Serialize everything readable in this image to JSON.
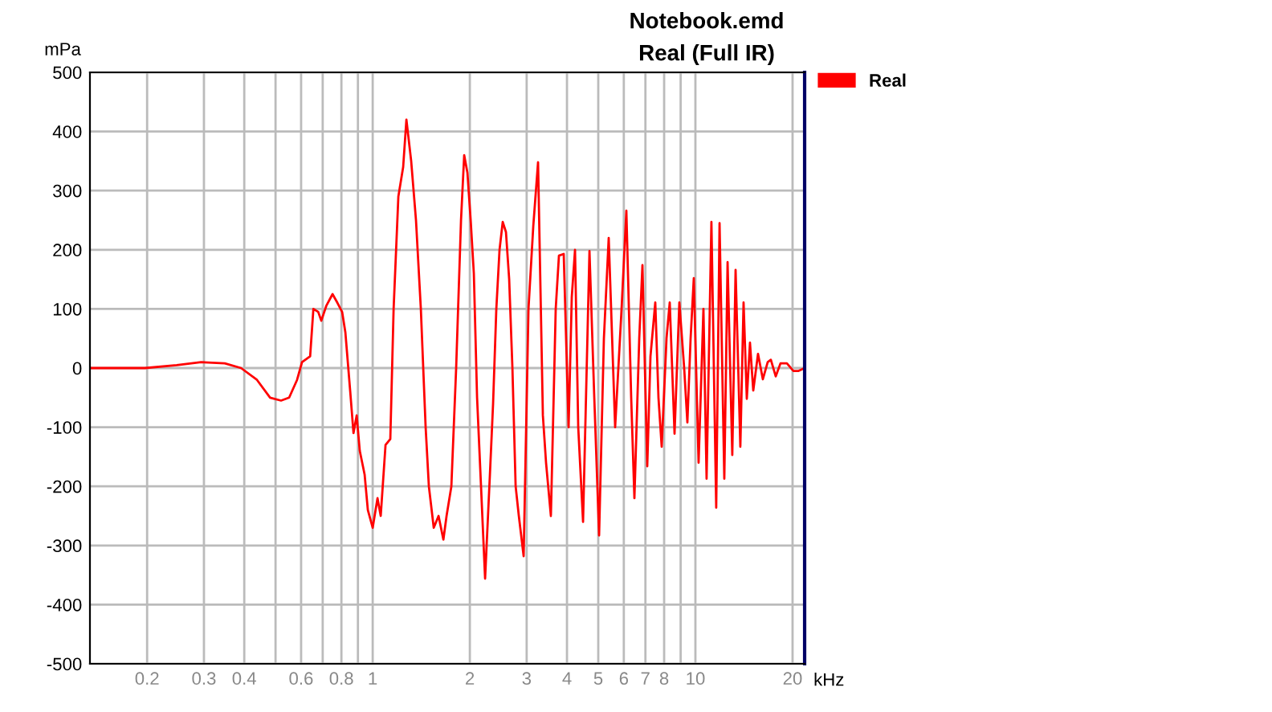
{
  "chart_data": {
    "type": "line",
    "title": "Notebook.emd",
    "subtitle": "Real (Full IR)",
    "xlabel": "kHz",
    "ylabel": "mPa",
    "log": "x",
    "grid": true,
    "legend": "top right",
    "marker": "none",
    "line_style": "solid",
    "xlim": [
      0.133,
      21.8
    ],
    "ylim": [
      -500,
      500
    ],
    "xticks": [
      0.2,
      0.3,
      0.4,
      {
        "value": 0.5,
        "label": null
      },
      0.6,
      {
        "value": 0.7,
        "label": null
      },
      0.8,
      {
        "value": 0.9,
        "label": null
      },
      1,
      2,
      3,
      4,
      5,
      6,
      7,
      8,
      {
        "value": 9,
        "label": null
      },
      10,
      20
    ],
    "yticks": [
      -500,
      -400,
      -300,
      -200,
      -100,
      0,
      100,
      200,
      300,
      400,
      500
    ],
    "x": [
      0.133,
      0.197,
      0.247,
      0.294,
      0.348,
      0.391,
      0.438,
      0.481,
      0.52,
      0.551,
      0.583,
      0.604,
      0.64,
      0.655,
      0.678,
      0.693,
      0.718,
      0.751,
      0.778,
      0.804,
      0.823,
      0.852,
      0.872,
      0.892,
      0.912,
      0.944,
      0.966,
      1.0,
      1.035,
      1.059,
      1.096,
      1.134,
      1.161,
      1.201,
      1.243,
      1.272,
      1.316,
      1.362,
      1.41,
      1.459,
      1.493,
      1.546,
      1.6,
      1.656,
      1.694,
      1.753,
      1.814,
      1.878,
      1.921,
      1.966,
      2.012,
      2.058,
      2.106,
      2.154,
      2.23,
      2.308,
      2.361,
      2.416,
      2.472,
      2.529,
      2.588,
      2.648,
      2.71,
      2.773,
      2.837,
      2.936,
      3.039,
      3.145,
      3.254,
      3.368,
      3.445,
      3.566,
      3.691,
      3.777,
      3.908,
      4.046,
      4.139,
      4.236,
      4.334,
      4.486,
      4.696,
      4.86,
      5.03,
      5.205,
      5.387,
      5.64,
      5.905,
      6.11,
      6.324,
      6.471,
      6.698,
      6.853,
      7.092,
      7.257,
      7.51,
      7.683,
      7.862,
      8.137,
      8.326,
      8.617,
      8.918,
      9.23,
      9.443,
      9.663,
      9.886,
      10.23,
      10.59,
      10.83,
      11.21,
      11.6,
      11.88,
      12.29,
      12.58,
      13.01,
      13.32,
      13.78,
      14.1,
      14.43,
      14.76,
      15.11,
      15.63,
      16.18,
      16.75,
      17.13,
      17.74,
      18.35,
      19.21,
      20.12,
      20.82,
      21.8
    ],
    "series": [
      {
        "name": "Real",
        "color": "#ff0000",
        "values": [
          0,
          0,
          5,
          10,
          8,
          0,
          -20,
          -50,
          -55,
          -50,
          -20,
          10,
          20,
          100,
          95,
          80,
          105,
          125,
          110,
          95,
          60,
          -40,
          -110,
          -80,
          -140,
          -180,
          -240,
          -270,
          -220,
          -250,
          -130,
          -120,
          100,
          290,
          340,
          420,
          350,
          250,
          100,
          -100,
          -200,
          -270,
          -250,
          -290,
          -250,
          -200,
          0,
          250,
          360,
          330,
          250,
          160,
          -50,
          -170,
          -356,
          -180,
          -60,
          100,
          200,
          247,
          230,
          150,
          0,
          -200,
          -250,
          -318,
          100,
          240,
          348,
          -80,
          -160,
          -250,
          100,
          190,
          193,
          -100,
          120,
          200,
          -100,
          -260,
          198,
          -50,
          -283,
          50,
          220,
          -100,
          100,
          266,
          -50,
          -220,
          50,
          174,
          -166,
          20,
          111,
          -50,
          -133,
          50,
          111,
          -111,
          111,
          0,
          -92,
          50,
          152,
          -160,
          100,
          -187,
          247,
          -236,
          245,
          -187,
          179,
          -147,
          166,
          -133,
          111,
          -52,
          43,
          -38,
          24,
          -19,
          10,
          14,
          -14,
          8,
          8,
          -5,
          -5,
          0
        ]
      }
    ]
  }
}
